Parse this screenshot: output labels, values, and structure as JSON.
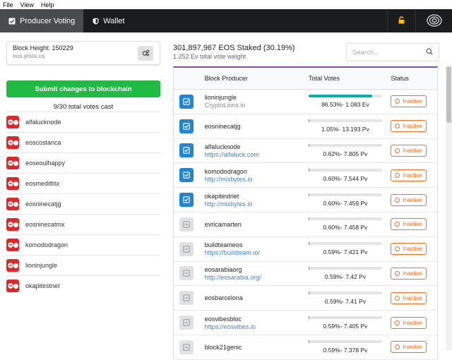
{
  "menu": {
    "file": "File",
    "view": "View",
    "help": "Help"
  },
  "nav": {
    "tab_voting": "Producer Voting",
    "tab_wallet": "Wallet",
    "lock_icon": "lock-icon",
    "network_icon": "spiral-icon"
  },
  "account": {
    "block_height": "Block Height: 150229",
    "name": "eos.jesta.us"
  },
  "left": {
    "submit_label": "Submit changes to blockchain",
    "votes_cast": "9/30 total votes cast",
    "selected": [
      "alfalucknode",
      "eoscostarica",
      "eoseoulhappy",
      "eosmedittitx",
      "eosninecatjg",
      "eosninecatmx",
      "komododragon",
      "lioninjungle",
      "okapitestnet"
    ]
  },
  "summary": {
    "staked": "301,897,967 EOS Staked (30.19%)",
    "weight": "1.252 Ev total vote weight"
  },
  "search": {
    "placeholder": "Search..."
  },
  "table": {
    "col_producer": "Block Producer",
    "col_votes": "Total Votes",
    "col_status": "Status",
    "rows": [
      {
        "selected": true,
        "name": "lioninjungle",
        "url": "CryptoLions.io",
        "url_is_link": false,
        "votes": "86.53%- 1.083 Ev",
        "fraction": 0.8653,
        "status": "Inactive"
      },
      {
        "selected": true,
        "name": "eosninecatjg",
        "url": "",
        "url_is_link": false,
        "votes": "1.05%- 13.193 Pv",
        "fraction": 0.0105,
        "status": "Inactive"
      },
      {
        "selected": true,
        "name": "alfalucknode",
        "url": "https://alfaluck.com",
        "url_is_link": true,
        "votes": "0.62%- 7.805 Pv",
        "fraction": 0.0062,
        "status": "Inactive"
      },
      {
        "selected": true,
        "name": "komododragon",
        "url": "http://mixbytes.io",
        "url_is_link": true,
        "votes": "0.60%- 7.544 Pv",
        "fraction": 0.006,
        "status": "Inactive"
      },
      {
        "selected": true,
        "name": "okapitestnet",
        "url": "http://mixbytes.io",
        "url_is_link": true,
        "votes": "0.60%- 7.459 Pv",
        "fraction": 0.006,
        "status": "Inactive"
      },
      {
        "selected": false,
        "name": "evricamarten",
        "url": "",
        "url_is_link": false,
        "votes": "0.60%- 7.458 Pv",
        "fraction": 0.006,
        "status": "Inactive"
      },
      {
        "selected": false,
        "name": "buildteameos",
        "url": "https://buildteam.io/",
        "url_is_link": true,
        "votes": "0.59%- 7.421 Pv",
        "fraction": 0.0059,
        "status": "Inactive"
      },
      {
        "selected": false,
        "name": "eosarabiaorg",
        "url": "http://eosarabia.org/",
        "url_is_link": true,
        "votes": "0.59%- 7.42 Pv",
        "fraction": 0.0059,
        "status": "Inactive"
      },
      {
        "selected": false,
        "name": "eosbarcelona",
        "url": "",
        "url_is_link": false,
        "votes": "0.59%- 7.41 Pv",
        "fraction": 0.0059,
        "status": "Inactive"
      },
      {
        "selected": false,
        "name": "eosvibesbloc",
        "url": "https://eosvibes.io",
        "url_is_link": true,
        "votes": "0.59%- 7.405 Pv",
        "fraction": 0.0059,
        "status": "Inactive"
      },
      {
        "selected": false,
        "name": "block21genic",
        "url": "",
        "url_is_link": false,
        "votes": "0.59%- 7.378 Pv",
        "fraction": 0.0059,
        "status": "Inactive"
      }
    ]
  },
  "colors": {
    "accent_blue": "#2185d0",
    "submit_green": "#21ba45",
    "remove_red": "#db2828",
    "status_orange": "#f2711c",
    "bar_teal": "#00b5ad",
    "table_top": "#7c4fa8"
  }
}
